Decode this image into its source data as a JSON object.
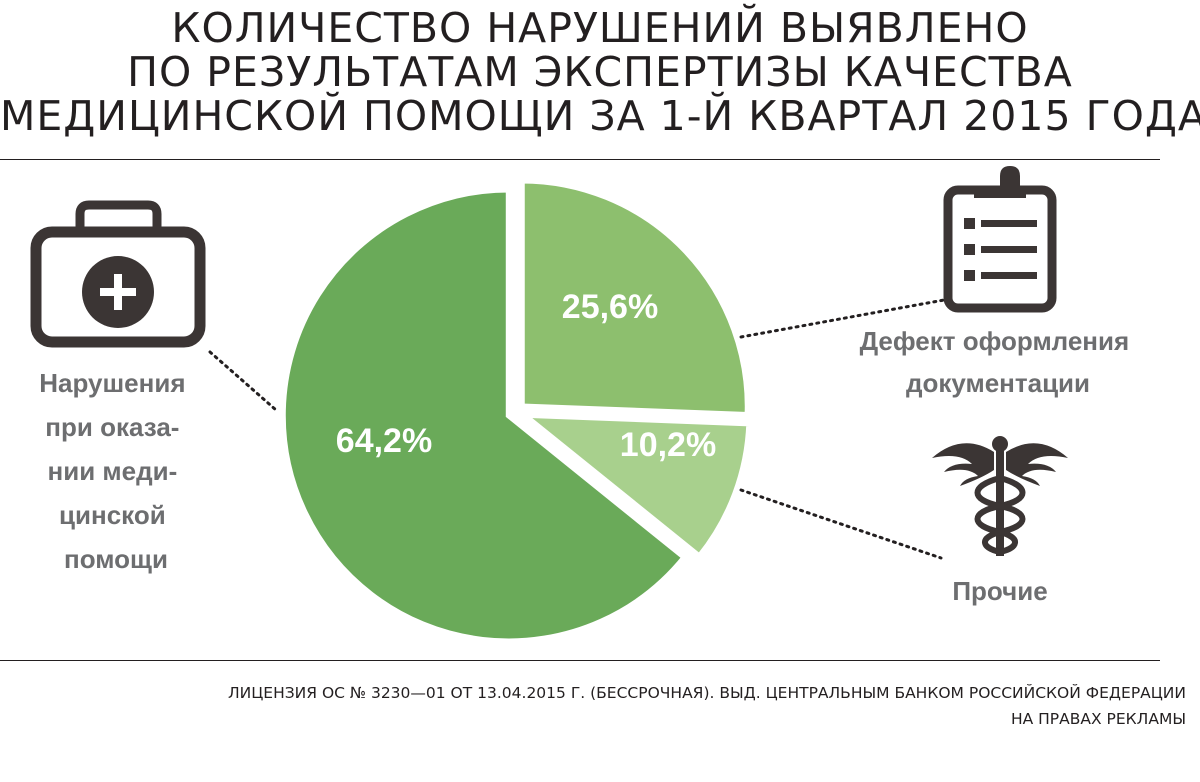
{
  "title_lines": [
    "КОЛИЧЕСТВО НАРУШЕНИЙ ВЫЯВЛЕНО",
    "ПО РЕЗУЛЬТАТАМ ЭКСПЕРТИЗЫ КАЧЕСТВА",
    "МЕДИЦИНСКОЙ ПОМОЩИ ЗА 1-Й КВАРТАЛ 2015 ГОДА"
  ],
  "chart_data": {
    "type": "pie",
    "title": "КОЛИЧЕСТВО НАРУШЕНИЙ ВЫЯВЛЕНО ПО РЕЗУЛЬТАТАМ ЭКСПЕРТИЗЫ КАЧЕСТВА МЕДИЦИНСКОЙ ПОМОЩИ ЗА 1-Й КВАРТАЛ 2015 ГОДА",
    "slices": [
      {
        "key": "defect-docs",
        "label_lines": [
          "Дефект оформления",
          "документации"
        ],
        "value": 25.6,
        "value_label": "25,6%",
        "color": "#8dbf6e",
        "icon": "clipboard-icon"
      },
      {
        "key": "other",
        "label_lines": [
          "Прочие"
        ],
        "value": 10.2,
        "value_label": "10,2%",
        "color": "#a8d08d",
        "icon": "caduceus-icon"
      },
      {
        "key": "care-violations",
        "label_lines": [
          "Нарушения",
          "при оказа-",
          "нии меди-",
          "цинской",
          "помощи"
        ],
        "value": 64.2,
        "value_label": "64,2%",
        "color": "#6aaa59",
        "icon": "medical-bag-icon"
      }
    ]
  },
  "colors": {
    "text_dark": "#231f20",
    "label_gray": "#6d6e70",
    "icon_dark": "#3b3534"
  },
  "footer": {
    "line1": "ЛИЦЕНЗИЯ ОС № 3230—01 ОТ 13.04.2015 Г. (БЕССРОЧНАЯ). ВЫД. ЦЕНТРАЛЬНЫМ БАНКОМ РОССИЙСКОЙ ФЕДЕРАЦИИ",
    "line2": "НА ПРАВАХ РЕКЛАМЫ"
  }
}
